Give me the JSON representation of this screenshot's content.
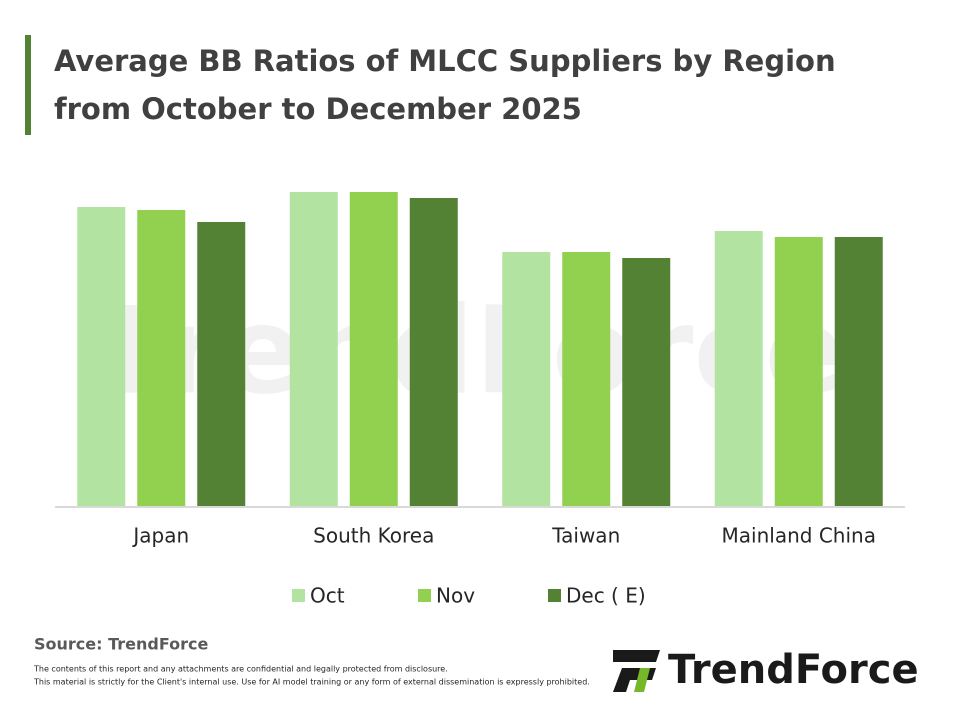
{
  "chart_data": {
    "type": "bar",
    "title": "Average BB Ratios of MLCC Suppliers by Region",
    "subtitle": "from October to December 2025",
    "categories": [
      "Japan",
      "South Korea",
      "Taiwan",
      "Mainland China"
    ],
    "series": [
      {
        "name": "Oct",
        "color": "#b3e3a0",
        "values": [
          1.0,
          1.05,
          0.85,
          0.92
        ]
      },
      {
        "name": "Nov",
        "color": "#92d050",
        "values": [
          0.99,
          1.05,
          0.85,
          0.9
        ]
      },
      {
        "name": "Dec ( E)",
        "color": "#548235",
        "values": [
          0.95,
          1.03,
          0.83,
          0.9
        ]
      }
    ],
    "ylim": [
      0,
      1.2
    ],
    "grid": false,
    "legend": "bottom"
  },
  "source": "Source: TrendForce",
  "disclaimer": [
    "The contents of this report and any attachments are confidential and legally protected from disclosure.",
    "This material is strictly for the Client's internal use. Use for AI model training or any form of external dissemination is expressly prohibited."
  ],
  "logo": "TrendForce"
}
